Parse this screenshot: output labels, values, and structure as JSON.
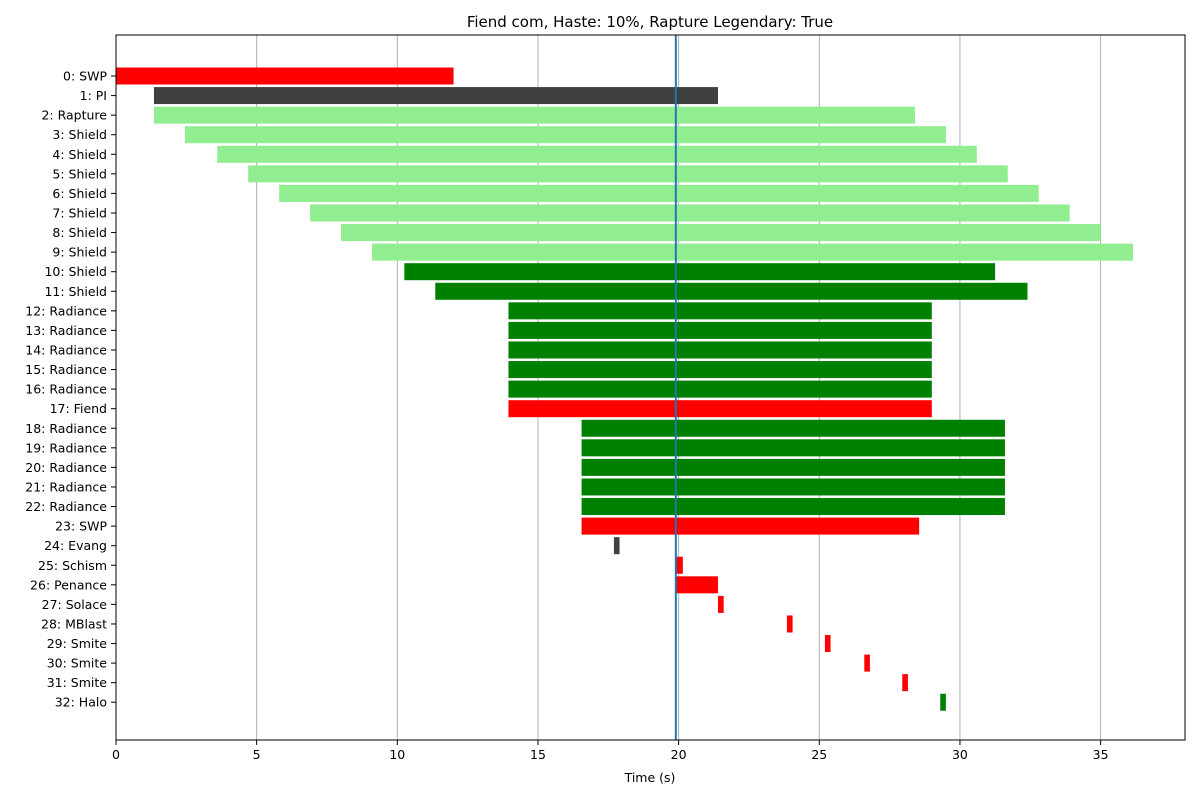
{
  "chart_data": {
    "type": "bar",
    "orientation": "horizontal",
    "title": "Fiend com, Haste: 10%, Rapture Legendary: True",
    "xlabel": "Time (s)",
    "ylabel": "",
    "xlim": [
      0,
      38
    ],
    "xticks": [
      0,
      5,
      10,
      15,
      20,
      25,
      30,
      35
    ],
    "grid": "x",
    "marker_line_x": 19.9,
    "colors": {
      "red": "#ff0000",
      "dark_gray": "#404040",
      "light_green": "#90ee90",
      "green": "#008000",
      "marker": "#1f77b4"
    },
    "bars": [
      {
        "label": "0: SWP",
        "start": 0.0,
        "end": 12.0,
        "color": "red"
      },
      {
        "label": "1: PI",
        "start": 1.35,
        "end": 21.4,
        "color": "dark_gray"
      },
      {
        "label": "2: Rapture",
        "start": 1.35,
        "end": 28.4,
        "color": "light_green"
      },
      {
        "label": "3: Shield",
        "start": 2.45,
        "end": 29.5,
        "color": "light_green"
      },
      {
        "label": "4: Shield",
        "start": 3.6,
        "end": 30.6,
        "color": "light_green"
      },
      {
        "label": "5: Shield",
        "start": 4.7,
        "end": 31.7,
        "color": "light_green"
      },
      {
        "label": "6: Shield",
        "start": 5.8,
        "end": 32.8,
        "color": "light_green"
      },
      {
        "label": "7: Shield",
        "start": 6.9,
        "end": 33.9,
        "color": "light_green"
      },
      {
        "label": "8: Shield",
        "start": 8.0,
        "end": 35.0,
        "color": "light_green"
      },
      {
        "label": "9: Shield",
        "start": 9.1,
        "end": 36.15,
        "color": "light_green"
      },
      {
        "label": "10: Shield",
        "start": 10.25,
        "end": 31.25,
        "color": "green"
      },
      {
        "label": "11: Shield",
        "start": 11.35,
        "end": 32.4,
        "color": "green"
      },
      {
        "label": "12: Radiance",
        "start": 13.95,
        "end": 29.0,
        "color": "green"
      },
      {
        "label": "13: Radiance",
        "start": 13.95,
        "end": 29.0,
        "color": "green"
      },
      {
        "label": "14: Radiance",
        "start": 13.95,
        "end": 29.0,
        "color": "green"
      },
      {
        "label": "15: Radiance",
        "start": 13.95,
        "end": 29.0,
        "color": "green"
      },
      {
        "label": "16: Radiance",
        "start": 13.95,
        "end": 29.0,
        "color": "green"
      },
      {
        "label": "17: Fiend",
        "start": 13.95,
        "end": 29.0,
        "color": "red"
      },
      {
        "label": "18: Radiance",
        "start": 16.55,
        "end": 31.6,
        "color": "green"
      },
      {
        "label": "19: Radiance",
        "start": 16.55,
        "end": 31.6,
        "color": "green"
      },
      {
        "label": "20: Radiance",
        "start": 16.55,
        "end": 31.6,
        "color": "green"
      },
      {
        "label": "21: Radiance",
        "start": 16.55,
        "end": 31.6,
        "color": "green"
      },
      {
        "label": "22: Radiance",
        "start": 16.55,
        "end": 31.6,
        "color": "green"
      },
      {
        "label": "23: SWP",
        "start": 16.55,
        "end": 28.55,
        "color": "red"
      },
      {
        "label": "24: Evang",
        "start": 17.7,
        "end": 17.9,
        "color": "dark_gray"
      },
      {
        "label": "25: Schism",
        "start": 19.9,
        "end": 20.15,
        "color": "red"
      },
      {
        "label": "26: Penance",
        "start": 19.9,
        "end": 21.4,
        "color": "red"
      },
      {
        "label": "27: Solace",
        "start": 21.4,
        "end": 21.6,
        "color": "red"
      },
      {
        "label": "28: MBlast",
        "start": 23.85,
        "end": 24.05,
        "color": "red"
      },
      {
        "label": "29: Smite",
        "start": 25.2,
        "end": 25.4,
        "color": "red"
      },
      {
        "label": "30: Smite",
        "start": 26.6,
        "end": 26.8,
        "color": "red"
      },
      {
        "label": "31: Smite",
        "start": 27.95,
        "end": 28.15,
        "color": "red"
      },
      {
        "label": "32: Halo",
        "start": 29.3,
        "end": 29.5,
        "color": "green"
      }
    ]
  }
}
